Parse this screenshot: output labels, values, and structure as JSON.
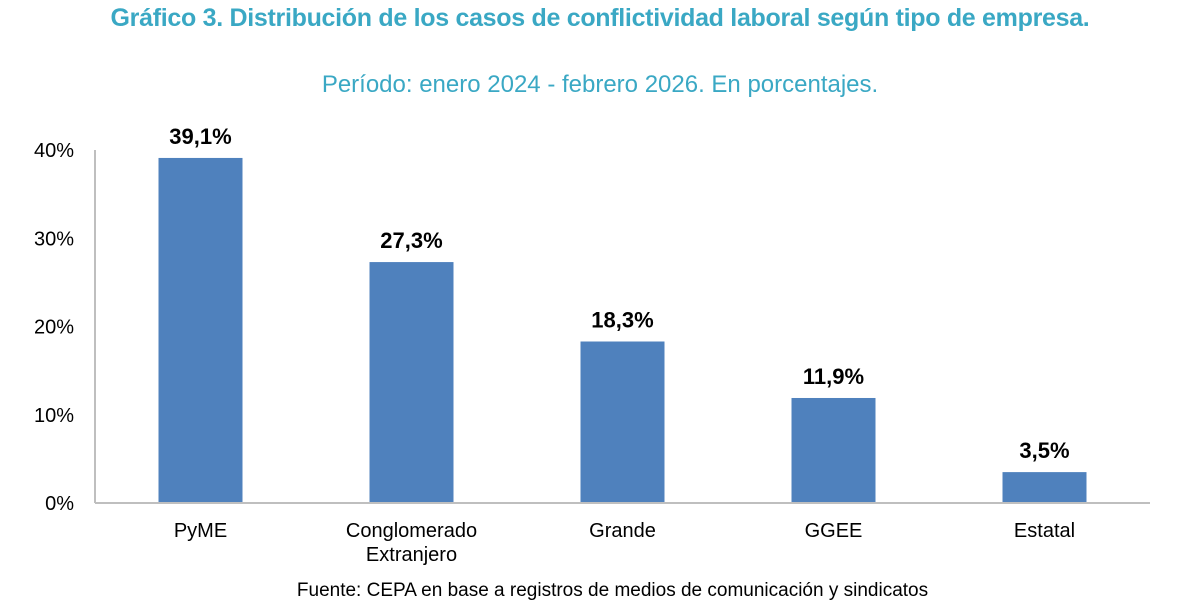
{
  "chart_data": {
    "type": "bar",
    "title": "Gráfico 3.  Distribución de los casos de conflictividad laboral según tipo de empresa.",
    "subtitle": "Período: enero 2024 - febrero 2026. En porcentajes.",
    "categories": [
      [
        "PyME"
      ],
      [
        "Conglomerado",
        "Extranjero"
      ],
      [
        "Grande"
      ],
      [
        "GGEE"
      ],
      [
        "Estatal"
      ]
    ],
    "values": [
      39.1,
      27.3,
      18.3,
      11.9,
      3.5
    ],
    "data_labels": [
      "39,1%",
      "27,3%",
      "18,3%",
      "11,9%",
      "3,5%"
    ],
    "xlabel": "",
    "ylabel": "",
    "ylim": [
      0,
      40
    ],
    "yticks": [
      0,
      10,
      20,
      30,
      40
    ],
    "ytick_labels": [
      "0%",
      "10%",
      "20%",
      "30%",
      "40%"
    ],
    "grid": false,
    "legend": "none",
    "bar_color": "#4f81bd",
    "source": "Fuente: CEPA en base a registros de medios de comunicación y sindicatos"
  },
  "colors": {
    "title": "#3aa8c4",
    "axis": "#bfbfbf"
  }
}
